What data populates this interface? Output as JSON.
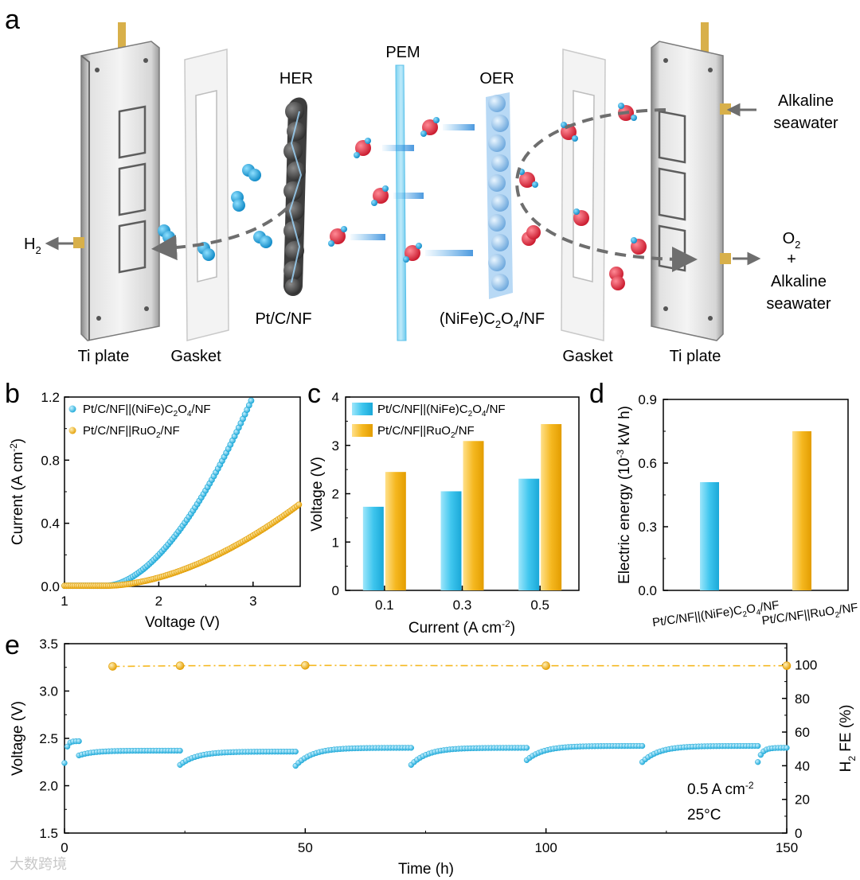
{
  "colors": {
    "cyan": "#3fc6ee",
    "cyan_dark": "#1aa8d8",
    "gold": "#f5b820",
    "gold_dark": "#e39d00",
    "axis": "#000000",
    "arrow": "#6e6e6e"
  },
  "panel_a": {
    "letter": "a",
    "labels": {
      "pem": "PEM",
      "her": "HER",
      "oer": "OER",
      "h2_prefix": "H",
      "h2_sub": "2",
      "alk_top_1": "Alkaline",
      "alk_top_2": "seawater",
      "o2_prefix": "O",
      "o2_sub": "2",
      "plus": "+",
      "alk_bot_1": "Alkaline",
      "alk_bot_2": "seawater",
      "cathode": "Pt/C/NF",
      "anode_1": "(NiFe)C",
      "anode_sub1": "2",
      "anode_2": "O",
      "anode_sub2": "4",
      "anode_3": "/NF",
      "ti_left": "Ti plate",
      "gasket_left": "Gasket",
      "gasket_right": "Gasket",
      "ti_right": "Ti plate"
    }
  },
  "chart_data": [
    {
      "panel": "b",
      "type": "scatter",
      "xlabel": "Voltage (V)",
      "ylabel_main": "Current (A cm",
      "ylabel_sup": "-2",
      "ylabel_end": ")",
      "xlim": [
        1.0,
        3.5
      ],
      "ylim": [
        0.0,
        1.2
      ],
      "xticks": [
        "1",
        "2",
        "3"
      ],
      "yticks": [
        "0.0",
        "0.4",
        "0.8",
        "1.2"
      ],
      "series": [
        {
          "name": "Pt/C/NF||(NiFe)C2O4/NF",
          "leg_a": "Pt/C/NF||(NiFe)C",
          "leg_s1": "2",
          "leg_b": "O",
          "leg_s2": "4",
          "leg_c": "/NF",
          "onset": 1.45,
          "ref_v": 3.0,
          "ref_j": 1.2,
          "exponent": 1.75,
          "color": "cyan"
        },
        {
          "name": "Pt/C/NF||RuO2/NF",
          "leg_a": "Pt/C/NF||RuO",
          "leg_s1": "2",
          "leg_c": "/NF",
          "onset": 1.45,
          "ref_v": 3.5,
          "ref_j": 0.52,
          "exponent": 1.75,
          "color": "gold"
        }
      ]
    },
    {
      "panel": "c",
      "type": "bar",
      "xlabel_main": "Current (A cm",
      "xlabel_sup": "-2",
      "xlabel_end": ")",
      "ylabel": "Voltage (V)",
      "categories": [
        "0.1",
        "0.3",
        "0.5"
      ],
      "ylim": [
        0,
        4
      ],
      "yticks": [
        "0",
        "1",
        "2",
        "3",
        "4"
      ],
      "series": [
        {
          "name": "Pt/C/NF||(NiFe)C2O4/NF",
          "leg_a": "Pt/C/NF||(NiFe)C",
          "leg_s1": "2",
          "leg_b": "O",
          "leg_s2": "4",
          "leg_c": "/NF",
          "values": [
            1.73,
            2.05,
            2.31
          ],
          "color": "cyan"
        },
        {
          "name": "Pt/C/NF||RuO2/NF",
          "leg_a": "Pt/C/NF||RuO",
          "leg_s1": "2",
          "leg_c": "/NF",
          "values": [
            2.45,
            3.09,
            3.44
          ],
          "color": "gold"
        }
      ]
    },
    {
      "panel": "d",
      "type": "bar",
      "ylabel_a": "Electric energy (10",
      "ylabel_sup": "-3",
      "ylabel_b": " kW h)",
      "categories": [
        {
          "name": "Pt/C/NF||(NiFe)C2O4/NF",
          "a": "Pt/C/NF||(NiFe)C",
          "s1": "2",
          "b": "O",
          "s2": "4",
          "c": "/NF"
        },
        {
          "name": "Pt/C/NF||RuO2/NF",
          "a": "Pt/C/NF||RuO",
          "s1": "2",
          "c": "/NF"
        }
      ],
      "values": [
        0.51,
        0.75
      ],
      "colors": [
        "cyan",
        "gold"
      ],
      "ylim": [
        0,
        0.9
      ],
      "yticks": [
        "0.0",
        "0.3",
        "0.6",
        "0.9"
      ]
    },
    {
      "panel": "e",
      "type": "line",
      "xlabel": "Time (h)",
      "ylabel_left": "Voltage (V)",
      "ylabel_right_a": "H",
      "ylabel_right_sub": "2",
      "ylabel_right_b": " FE (%)",
      "xlim": [
        0,
        150
      ],
      "ylim_left": [
        1.5,
        3.5
      ],
      "ylim_right": [
        0,
        112.5
      ],
      "xticks": [
        "0",
        "50",
        "100",
        "150"
      ],
      "yticks_left": [
        "1.5",
        "2.0",
        "2.5",
        "3.0",
        "3.5"
      ],
      "yticks_right": [
        "0",
        "20",
        "40",
        "60",
        "80",
        "100"
      ],
      "voltage_segments": [
        {
          "t0": 0,
          "t1": 3,
          "v0": 2.24,
          "v1": 2.47
        },
        {
          "t0": 3,
          "t1": 24,
          "v0": 2.32,
          "v1": 2.37
        },
        {
          "t0": 24,
          "t1": 48,
          "v0": 2.22,
          "v1": 2.36
        },
        {
          "t0": 48,
          "t1": 72,
          "v0": 2.21,
          "v1": 2.4
        },
        {
          "t0": 72,
          "t1": 96,
          "v0": 2.22,
          "v1": 2.4
        },
        {
          "t0": 96,
          "t1": 120,
          "v0": 2.27,
          "v1": 2.42
        },
        {
          "t0": 120,
          "t1": 144,
          "v0": 2.25,
          "v1": 2.42
        },
        {
          "t0": 144,
          "t1": 150,
          "v0": 2.25,
          "v1": 2.4
        }
      ],
      "fe_points": [
        {
          "t": 10,
          "fe": 99
        },
        {
          "t": 24,
          "fe": 99.4
        },
        {
          "t": 50,
          "fe": 99.6
        },
        {
          "t": 100,
          "fe": 99.4
        },
        {
          "t": 150,
          "fe": 99.4
        }
      ],
      "annotation_a": "0.5 A cm",
      "annotation_sup": "-2",
      "annotation_temp": "25°C"
    }
  ],
  "watermark": "大数跨境"
}
